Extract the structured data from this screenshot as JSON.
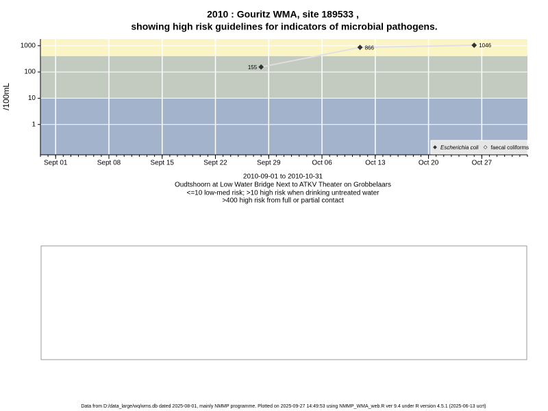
{
  "chart_data": {
    "type": "line",
    "title": "2010 : Gouritz WMA, site 189533 ,",
    "subtitle": "showing high risk guidelines for indicators of microbial pathogens.",
    "y_label": "/100mL",
    "x": [
      "2010-09-28",
      "2010-10-11",
      "2010-10-26"
    ],
    "series": [
      {
        "name": "Escherichia coli",
        "color": "#333333",
        "values": [
          155,
          866,
          1046
        ],
        "value_labels": [
          "155",
          "866",
          "1046"
        ]
      },
      {
        "name": "faecal coliforms",
        "color": "#ffffff",
        "values": [
          null,
          null,
          null
        ]
      }
    ],
    "line_color": "#e0e0e0",
    "xlim": [
      "2010-08-30",
      "2010-11-02"
    ],
    "xticks": [
      {
        "value": "2010-09-01",
        "label": "Sept 01"
      },
      {
        "value": "2010-09-08",
        "label": "Sept 08"
      },
      {
        "value": "2010-09-15",
        "label": "Sept 15"
      },
      {
        "value": "2010-09-22",
        "label": "Sept 22"
      },
      {
        "value": "2010-09-29",
        "label": "Sept 29"
      },
      {
        "value": "2010-10-06",
        "label": "Oct 06"
      },
      {
        "value": "2010-10-13",
        "label": "Oct 13"
      },
      {
        "value": "2010-10-20",
        "label": "Oct 20"
      },
      {
        "value": "2010-10-27",
        "label": "Oct 27"
      }
    ],
    "ylim": [
      0.07,
      1800
    ],
    "yticks": [
      1,
      10,
      100,
      1000
    ],
    "log_y": true,
    "grid": true,
    "bands": [
      {
        "from": 0.07,
        "to": 10,
        "color": "#a3b3cb"
      },
      {
        "from": 10,
        "to": 400,
        "color": "#c3cbc0"
      },
      {
        "from": 400,
        "to": 1800,
        "color": "#fbf5c6"
      }
    ],
    "legend": "bottom-right",
    "notes": [
      "2010-09-01 to 2010-10-31",
      "Oudtshoorn at Low Water Bridge Next to ATKV Theater on Grobbelaars",
      "<=10 low-med risk; >10 high risk when drinking untreated water",
      ">400 high risk from full or partial contact"
    ],
    "footer": "Data from D:/data_large/wq/wms.db dated 2025-08-01, mainly NMMP programme. Plotted on 2025-09-27 14:49:53 using NMMP_WMA_web.R ver 9.4 under R version 4.5.1 (2025-06-13 ucrt)"
  }
}
